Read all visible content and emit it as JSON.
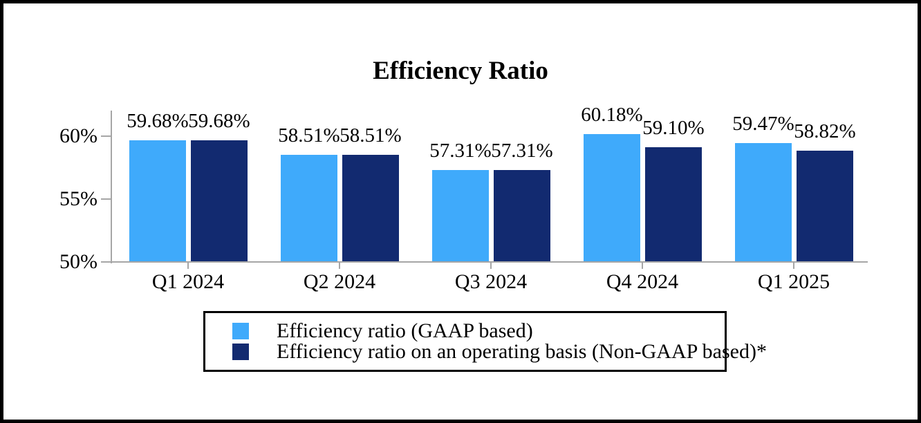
{
  "chart_data": {
    "type": "bar",
    "title": "Efficiency Ratio",
    "categories": [
      "Q1 2024",
      "Q2 2024",
      "Q3 2024",
      "Q4 2024",
      "Q1 2025"
    ],
    "series": [
      {
        "name": "Efficiency ratio (GAAP based)",
        "color": "#3FAAFB",
        "values": [
          59.68,
          58.51,
          57.31,
          60.18,
          59.47
        ],
        "labels": [
          "59.68%",
          "58.51%",
          "57.31%",
          "60.18%",
          "59.47%"
        ]
      },
      {
        "name": "Efficiency ratio on an operating basis (Non-GAAP based)*",
        "color": "#122A70",
        "values": [
          59.68,
          58.51,
          57.31,
          59.1,
          58.82
        ],
        "labels": [
          "59.68%",
          "58.51%",
          "57.31%",
          "59.10%",
          "58.82%"
        ]
      }
    ],
    "y_axis": {
      "min": 50,
      "max": 62,
      "ticks": [
        {
          "label": "50%",
          "value": 50
        },
        {
          "label": "55%",
          "value": 55
        },
        {
          "label": "60%",
          "value": 60
        }
      ]
    },
    "grid": false,
    "legend_position": "bottom",
    "axis_color": "#A6A6A6",
    "text_color": "#000000"
  }
}
